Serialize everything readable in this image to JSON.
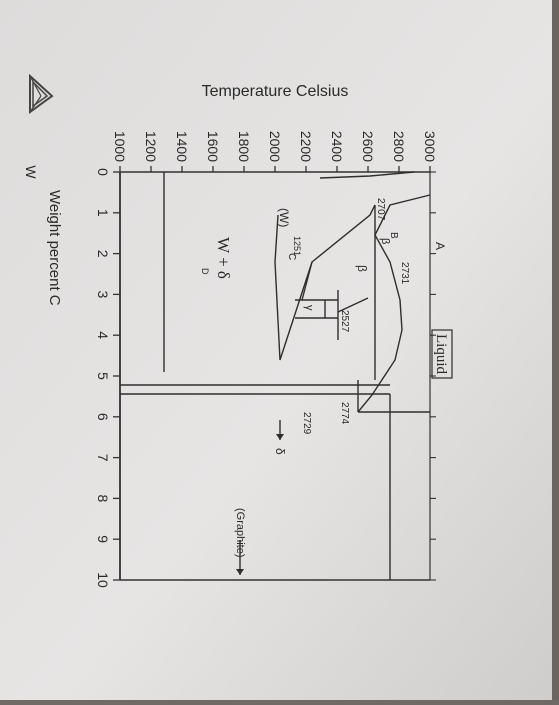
{
  "diagram": {
    "y_axis_title": "Temperature Celsius",
    "x_axis_title": "Weight percent C",
    "x_ticks": [
      "0",
      "1",
      "2",
      "3",
      "4",
      "5",
      "6",
      "7",
      "8",
      "9",
      "10"
    ],
    "y_ticks": [
      "1000",
      "1200",
      "1400",
      "1600",
      "1800",
      "2000",
      "2200",
      "2400",
      "2600",
      "2800",
      "3000"
    ],
    "x_start_label": "W",
    "phase_labels": {
      "liquid": "Liquid",
      "w_delta": "W + δ",
      "w": "(W)",
      "graphite": "(Graphite)",
      "beta": "β",
      "beta_small": "β",
      "gamma": "γ",
      "delta": "δ",
      "a": "A",
      "b": "B",
      "c": "C",
      "d": "D"
    },
    "temperature_labels": {
      "t2707": "2707",
      "t2731": "2731",
      "t2527": "2527",
      "t2774": "2774",
      "t2729": "2729",
      "t1251": "1251"
    }
  },
  "chart_data": {
    "type": "phase-diagram",
    "xlabel": "Weight percent C",
    "ylabel": "Temperature Celsius",
    "xlim": [
      0,
      10
    ],
    "ylim": [
      1000,
      3000
    ],
    "x_ticks": [
      0,
      1,
      2,
      3,
      4,
      5,
      6,
      7,
      8,
      9,
      10
    ],
    "y_ticks": [
      1000,
      1200,
      1400,
      1600,
      1800,
      2000,
      2200,
      2400,
      2600,
      2800,
      3000
    ],
    "invariant_temperatures": [
      2707,
      2731,
      2527,
      2774,
      2729,
      1251
    ]
  }
}
